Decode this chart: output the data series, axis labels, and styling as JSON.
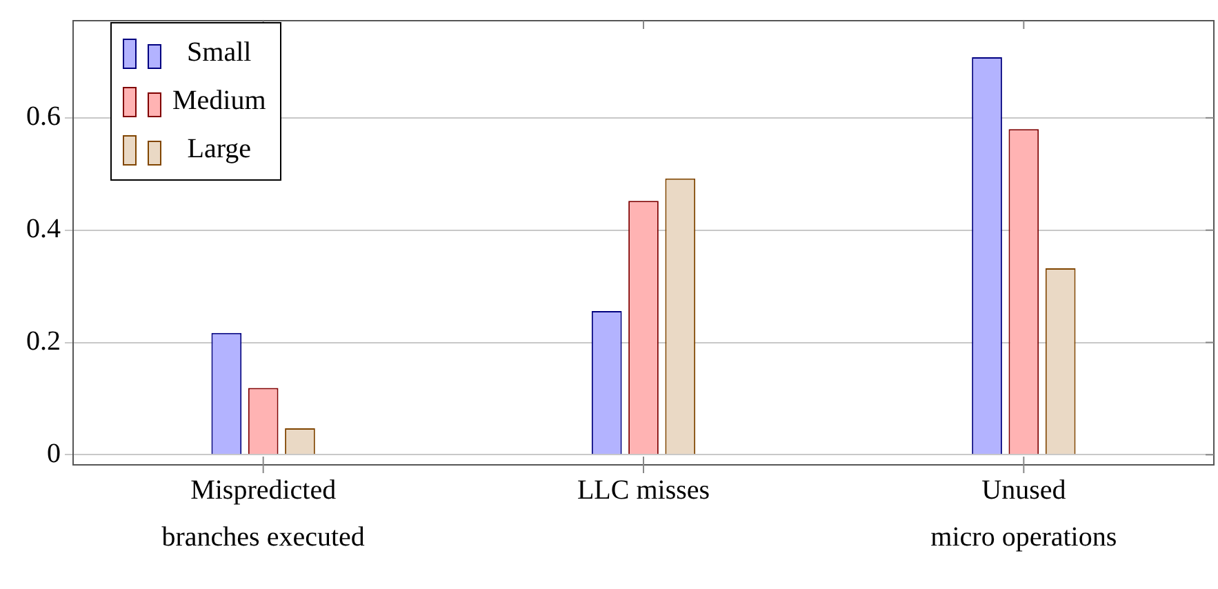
{
  "chart_data": {
    "type": "bar",
    "categories": [
      "Mispredicted branches executed",
      "LLC misses",
      "Unused micro operations"
    ],
    "series": [
      {
        "name": "Small",
        "color": "#b3b3ff",
        "values": [
          0.217,
          0.256,
          0.708
        ]
      },
      {
        "name": "Medium",
        "color": "#ffb3b3",
        "values": [
          0.119,
          0.452,
          0.58
        ]
      },
      {
        "name": "Large",
        "color": "#ead9c5",
        "values": [
          0.047,
          0.492,
          0.332
        ]
      }
    ],
    "ylim": [
      -0.018,
      0.773
    ],
    "yticks": [
      0,
      0.2,
      0.4,
      0.6
    ],
    "grid": "y",
    "legend": "top left"
  }
}
